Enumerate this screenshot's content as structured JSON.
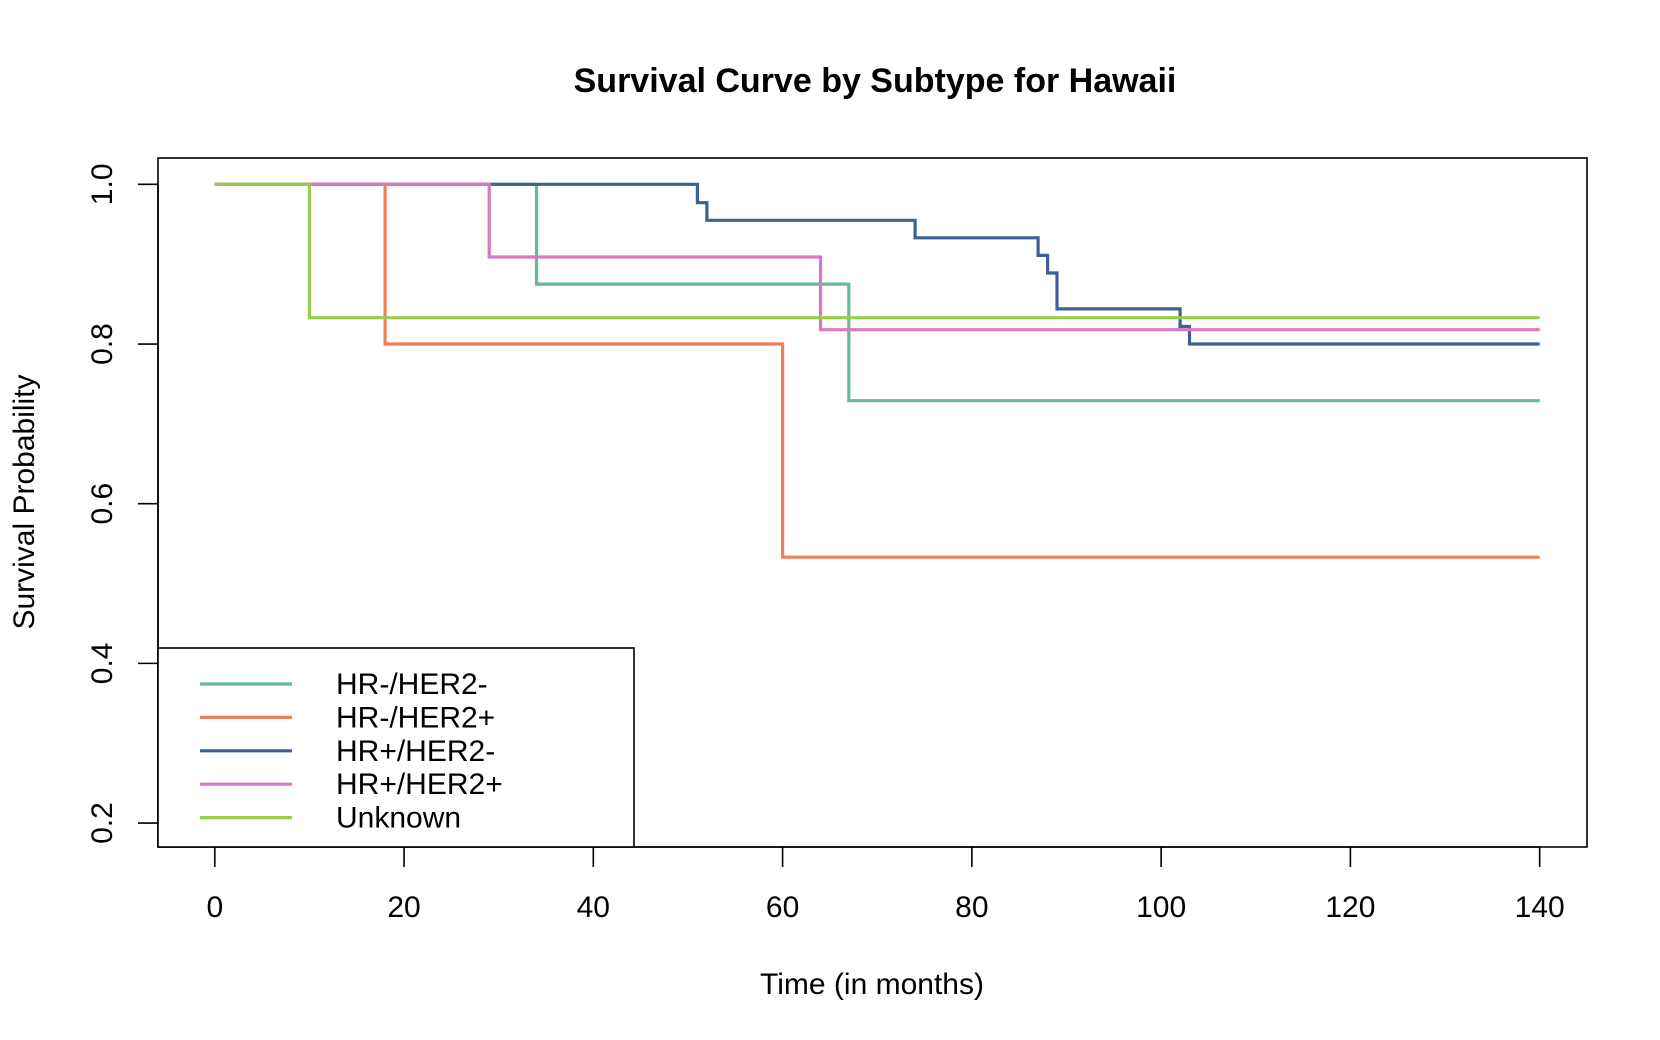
{
  "chart_data": {
    "type": "line",
    "step": true,
    "title": "Survival Curve by Subtype for Hawaii",
    "xlabel": "Time (in months)",
    "ylabel": "Survival Probability",
    "xlim": [
      -6,
      145
    ],
    "ylim": [
      0.17,
      1.033
    ],
    "xticks": [
      0,
      20,
      40,
      60,
      80,
      100,
      120,
      140
    ],
    "yticks": [
      0.2,
      0.4,
      0.6,
      0.8,
      1.0
    ],
    "xtick_labels": [
      "0",
      "20",
      "40",
      "60",
      "80",
      "100",
      "120",
      "140"
    ],
    "ytick_labels": [
      "0.2",
      "0.4",
      "0.6",
      "0.8",
      "1.0"
    ],
    "grid": false,
    "legend_position": "bottom-left",
    "series": [
      {
        "name": "HR-/HER2-",
        "color": "#66B99A",
        "points": [
          [
            0,
            1.0
          ],
          [
            34,
            0.875
          ],
          [
            67,
            0.729
          ],
          [
            140,
            0.729
          ]
        ]
      },
      {
        "name": "HR-/HER2+",
        "color": "#F07F5A",
        "points": [
          [
            0,
            1.0
          ],
          [
            18,
            0.8
          ],
          [
            60,
            0.533
          ],
          [
            140,
            0.533
          ]
        ]
      },
      {
        "name": "HR+/HER2-",
        "color": "#3D6196",
        "points": [
          [
            0,
            1.0
          ],
          [
            51,
            0.977
          ],
          [
            52,
            0.955
          ],
          [
            74,
            0.933
          ],
          [
            87,
            0.911
          ],
          [
            88,
            0.889
          ],
          [
            89,
            0.844
          ],
          [
            102,
            0.822
          ],
          [
            103,
            0.8
          ],
          [
            140,
            0.8
          ]
        ]
      },
      {
        "name": "HR+/HER2+",
        "color": "#D977C4",
        "points": [
          [
            0,
            1.0
          ],
          [
            29,
            0.909
          ],
          [
            64,
            0.818
          ],
          [
            140,
            0.818
          ]
        ]
      },
      {
        "name": "Unknown",
        "color": "#9ACD4C",
        "points": [
          [
            0,
            1.0
          ],
          [
            10,
            0.833
          ],
          [
            140,
            0.833
          ]
        ]
      }
    ]
  }
}
